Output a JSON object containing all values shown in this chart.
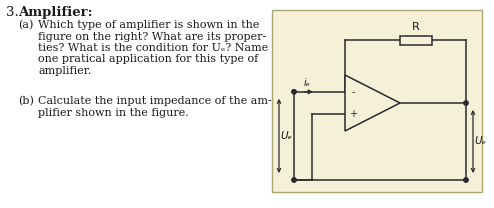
{
  "title": "3.",
  "title_bold": "Amplifier:",
  "qa_label": "(a)",
  "qa_lines": [
    "Which type of amplifier is shown in the",
    "figure on the right? What are its proper-",
    "ties? What is the condition for Uₑ? Name",
    "one pratical application for this type of",
    "amplifier."
  ],
  "qb_label": "(b)",
  "qb_lines": [
    "Calculate the input impedance of the am-",
    "plifier shown in the figure."
  ],
  "circuit_bg": "#f5f0d8",
  "circuit_border": "#aaa870",
  "R_label": "R",
  "ie_label": "iₑ",
  "Ue_label": "Uₑ",
  "Ua_label": "Uₑ",
  "lc": "#2a2a2a",
  "tc": "#1a1a1a",
  "fs_title": 9.5,
  "fs_body": 8.0,
  "fs_circuit": 7.5
}
